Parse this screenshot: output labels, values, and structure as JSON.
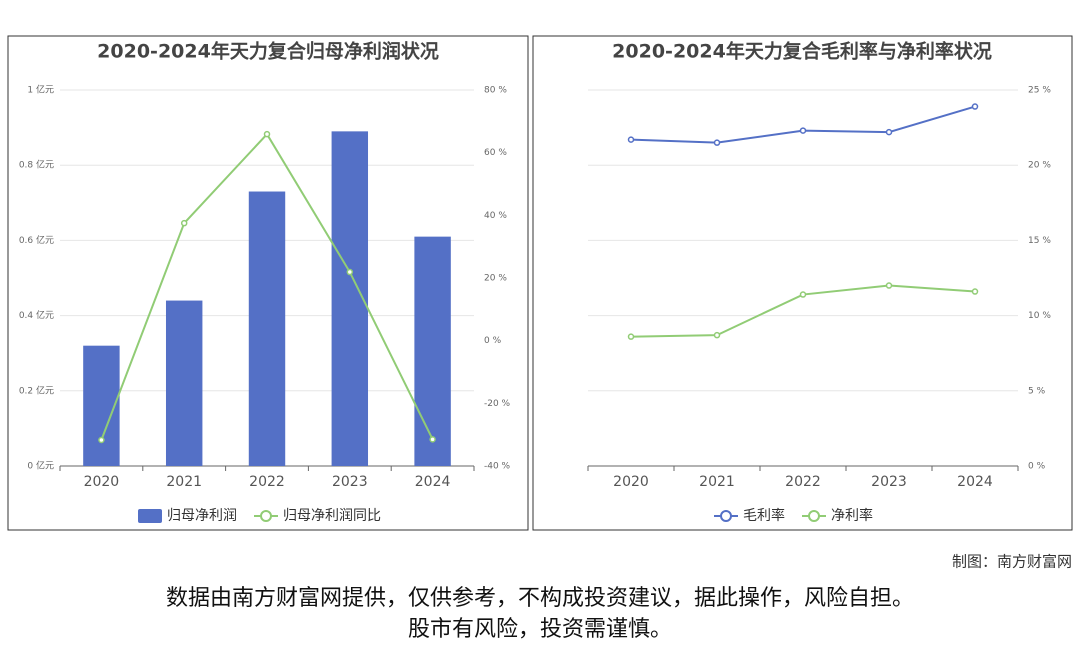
{
  "chart_data": [
    {
      "type": "bar",
      "title": "2020-2024年天力复合归母净利润状况",
      "categories": [
        "2020",
        "2021",
        "2022",
        "2023",
        "2024"
      ],
      "ylim": [
        0,
        1
      ],
      "yticks": [
        {
          "value": 0,
          "label": "0 亿元"
        },
        {
          "value": 0.2,
          "label": "0.2 亿元"
        },
        {
          "value": 0.4,
          "label": "0.4 亿元"
        },
        {
          "value": 0.6,
          "label": "0.6 亿元"
        },
        {
          "value": 0.8,
          "label": "0.8 亿元"
        },
        {
          "value": 1,
          "label": "1 亿元"
        }
      ],
      "y2lim": [
        -40,
        80
      ],
      "y2ticks": [
        {
          "value": -40,
          "label": "-40 %"
        },
        {
          "value": -20,
          "label": "-20 %"
        },
        {
          "value": 0,
          "label": "0 %"
        },
        {
          "value": 20,
          "label": "20 %"
        },
        {
          "value": 40,
          "label": "40 %"
        },
        {
          "value": 60,
          "label": "60 %"
        },
        {
          "value": 80,
          "label": "80 %"
        }
      ],
      "grid": true,
      "series": [
        {
          "name": "归母净利润",
          "type": "bar",
          "color": "#5470c6",
          "values": [
            0.32,
            0.44,
            0.73,
            0.89,
            0.61
          ]
        },
        {
          "name": "归母净利润同比",
          "type": "line",
          "axis": "y2",
          "color": "#91cc75",
          "values": [
            -31.7,
            37.5,
            65.9,
            21.9,
            -31.5
          ]
        }
      ]
    },
    {
      "type": "line",
      "title": "2020-2024年天力复合毛利率与净利率状况",
      "categories": [
        "2020",
        "2021",
        "2022",
        "2023",
        "2024"
      ],
      "y2lim": [
        0,
        25
      ],
      "y2ticks": [
        {
          "value": 0,
          "label": "0 %"
        },
        {
          "value": 5,
          "label": "5 %"
        },
        {
          "value": 10,
          "label": "10 %"
        },
        {
          "value": 15,
          "label": "15 %"
        },
        {
          "value": 20,
          "label": "20 %"
        },
        {
          "value": 25,
          "label": "25 %"
        }
      ],
      "grid": true,
      "series": [
        {
          "name": "毛利率",
          "type": "line",
          "axis": "y2",
          "color": "#5470c6",
          "values": [
            21.7,
            21.5,
            22.3,
            22.2,
            23.9
          ]
        },
        {
          "name": "净利率",
          "type": "line",
          "axis": "y2",
          "color": "#91cc75",
          "values": [
            8.6,
            8.7,
            11.4,
            12.0,
            11.6
          ]
        }
      ]
    }
  ],
  "credit": "制图：南方财富网",
  "disclaimer": [
    "数据由南方财富网提供，仅供参考，不构成投资建议，据此操作，风险自担。",
    "股市有风险，投资需谨慎。"
  ]
}
